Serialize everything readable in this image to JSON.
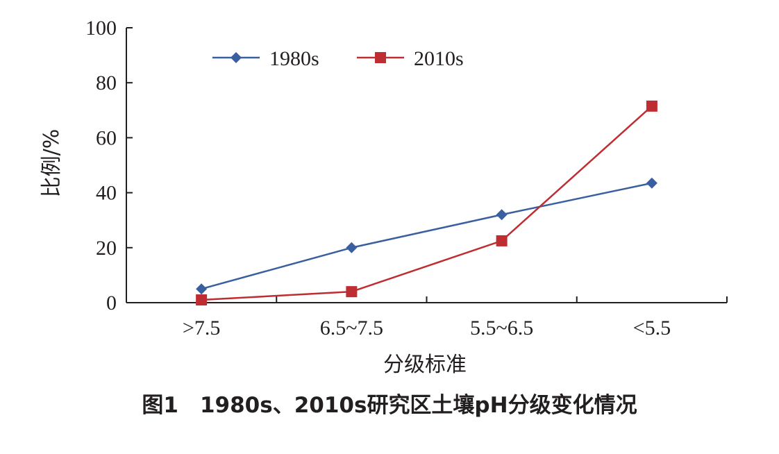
{
  "chart_data": {
    "type": "line",
    "xlabel": "分级标准",
    "ylabel": "比例/%",
    "categories": [
      ">7.5",
      "6.5~7.5",
      "5.5~6.5",
      "<5.5"
    ],
    "ylim": [
      0,
      100
    ],
    "yticks": [
      "0",
      "20",
      "40",
      "60",
      "80",
      "100"
    ],
    "legend_position": "top-left",
    "grid": false,
    "series": [
      {
        "name": "1980s",
        "values": [
          5,
          20,
          32,
          43.5
        ],
        "color": "#3a5fa0",
        "marker": "diamond"
      },
      {
        "name": "2010s",
        "values": [
          1,
          4,
          22.5,
          71.5
        ],
        "color": "#be2d32",
        "marker": "square"
      }
    ]
  },
  "caption": "图1　1980s、2010s研究区土壤pH分级变化情况"
}
